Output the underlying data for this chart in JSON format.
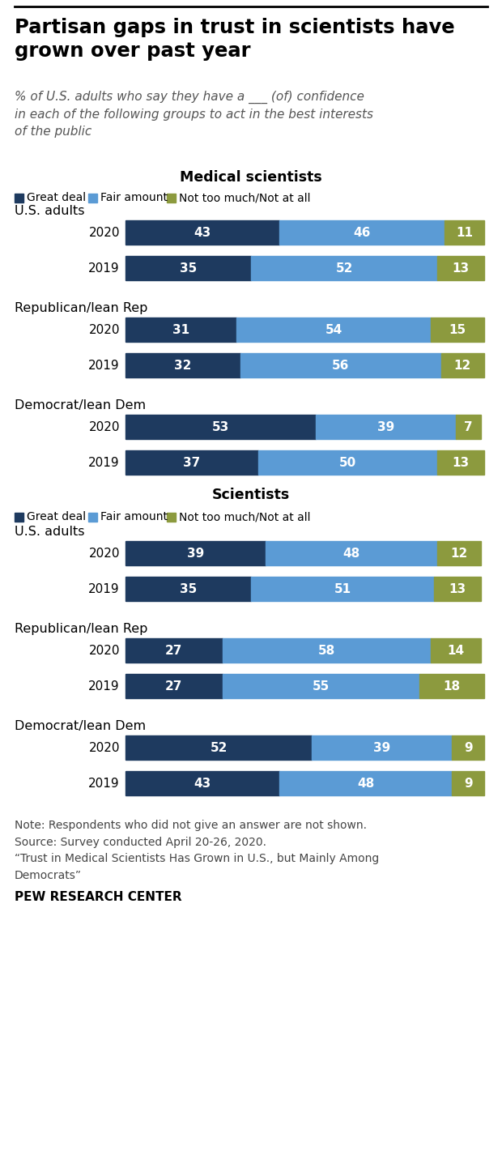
{
  "title": "Partisan gaps in trust in scientists have\ngrown over past year",
  "subtitle": "% of U.S. adults who say they have a ___ (of) confidence\nin each of the following groups to act in the best interests\nof the public",
  "color_great": "#1e3a5f",
  "color_fair": "#5b9bd5",
  "color_not": "#8c9a3e",
  "legend_labels": [
    "Great deal",
    "Fair amount",
    "Not too much/Not at all"
  ],
  "medical_title": "Medical scientists",
  "scientists_title": "Scientists",
  "sections": [
    {
      "group": "Medical scientists",
      "subsections": [
        {
          "label": "U.S. adults",
          "rows": [
            {
              "year": "2020",
              "great": 43,
              "fair": 46,
              "not": 11
            },
            {
              "year": "2019",
              "great": 35,
              "fair": 52,
              "not": 13
            }
          ]
        },
        {
          "label": "Republican/lean Rep",
          "rows": [
            {
              "year": "2020",
              "great": 31,
              "fair": 54,
              "not": 15
            },
            {
              "year": "2019",
              "great": 32,
              "fair": 56,
              "not": 12
            }
          ]
        },
        {
          "label": "Democrat/lean Dem",
          "rows": [
            {
              "year": "2020",
              "great": 53,
              "fair": 39,
              "not": 7
            },
            {
              "year": "2019",
              "great": 37,
              "fair": 50,
              "not": 13
            }
          ]
        }
      ]
    },
    {
      "group": "Scientists",
      "subsections": [
        {
          "label": "U.S. adults",
          "rows": [
            {
              "year": "2020",
              "great": 39,
              "fair": 48,
              "not": 12
            },
            {
              "year": "2019",
              "great": 35,
              "fair": 51,
              "not": 13
            }
          ]
        },
        {
          "label": "Republican/lean Rep",
          "rows": [
            {
              "year": "2020",
              "great": 27,
              "fair": 58,
              "not": 14
            },
            {
              "year": "2019",
              "great": 27,
              "fair": 55,
              "not": 18
            }
          ]
        },
        {
          "label": "Democrat/lean Dem",
          "rows": [
            {
              "year": "2020",
              "great": 52,
              "fair": 39,
              "not": 9
            },
            {
              "year": "2019",
              "great": 43,
              "fair": 48,
              "not": 9
            }
          ]
        }
      ]
    }
  ],
  "note": "Note: Respondents who did not give an answer are not shown.\nSource: Survey conducted April 20-26, 2020.\n“Trust in Medical Scientists Has Grown in U.S., but Mainly Among\nDemocrats”",
  "footer": "PEW RESEARCH CENTER"
}
